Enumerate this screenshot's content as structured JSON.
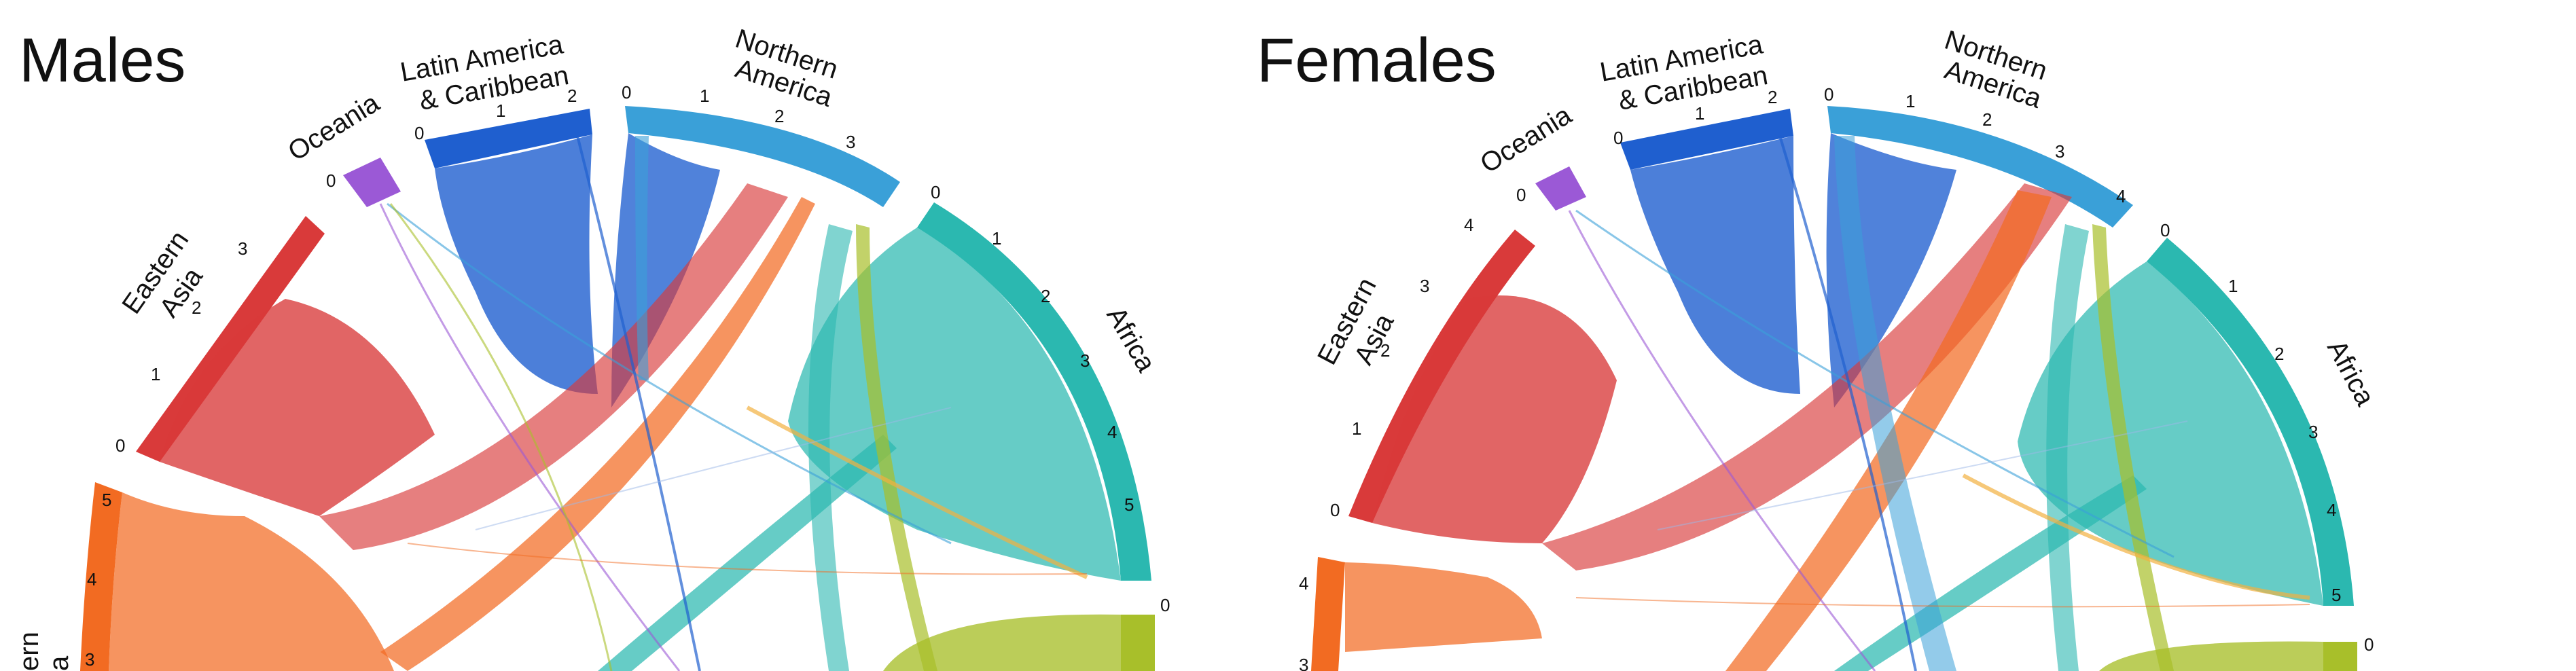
{
  "panels": [
    {
      "title": "Males",
      "regions": [
        {
          "key": "eastern-asia",
          "label_lines": [
            "Eastern",
            "Asia"
          ],
          "color": "#d93a3a",
          "ticks": [
            "0",
            "1",
            "2",
            "3"
          ]
        },
        {
          "key": "oceania",
          "label_lines": [
            "Oceania"
          ],
          "color": "#9b59d6",
          "ticks": [
            "0"
          ]
        },
        {
          "key": "latin-america",
          "label_lines": [
            "Latin America",
            "& Caribbean"
          ],
          "color": "#1f5fcf",
          "ticks": [
            "0",
            "1",
            "2"
          ]
        },
        {
          "key": "northern-america",
          "label_lines": [
            "Northern",
            "America"
          ],
          "color": "#3aa0d8",
          "ticks": [
            "0",
            "1",
            "2",
            "3"
          ]
        },
        {
          "key": "africa",
          "label_lines": [
            "Africa"
          ],
          "color": "#2bb8b0",
          "ticks": [
            "0",
            "1",
            "2",
            "3",
            "4",
            "5"
          ]
        },
        {
          "key": "yellow-region",
          "label_lines": [],
          "color": "#a8bf2a",
          "ticks": [
            "0"
          ]
        },
        {
          "key": "orange-region",
          "label_lines": [
            "ern",
            "a"
          ],
          "color": "#f26b22",
          "ticks": [
            "3",
            "4",
            "5"
          ]
        }
      ]
    },
    {
      "title": "Females",
      "regions": [
        {
          "key": "eastern-asia",
          "label_lines": [
            "Eastern",
            "Asia"
          ],
          "color": "#d93a3a",
          "ticks": [
            "0",
            "1",
            "2",
            "3",
            "4"
          ]
        },
        {
          "key": "oceania",
          "label_lines": [
            "Oceania"
          ],
          "color": "#9b59d6",
          "ticks": [
            "0"
          ]
        },
        {
          "key": "latin-america",
          "label_lines": [
            "Latin America",
            "& Caribbean"
          ],
          "color": "#1f5fcf",
          "ticks": [
            "0",
            "1",
            "2"
          ]
        },
        {
          "key": "northern-america",
          "label_lines": [
            "Northern",
            "America"
          ],
          "color": "#3aa0d8",
          "ticks": [
            "0",
            "1",
            "2",
            "3",
            "4"
          ]
        },
        {
          "key": "africa",
          "label_lines": [
            "Africa"
          ],
          "color": "#2bb8b0",
          "ticks": [
            "0",
            "1",
            "2",
            "3",
            "4",
            "5"
          ]
        },
        {
          "key": "yellow-region",
          "label_lines": [],
          "color": "#a8bf2a",
          "ticks": [
            "0"
          ]
        },
        {
          "key": "orange-region",
          "label_lines": [],
          "color": "#f26b22",
          "ticks": [
            "3",
            "4"
          ]
        }
      ]
    }
  ]
}
